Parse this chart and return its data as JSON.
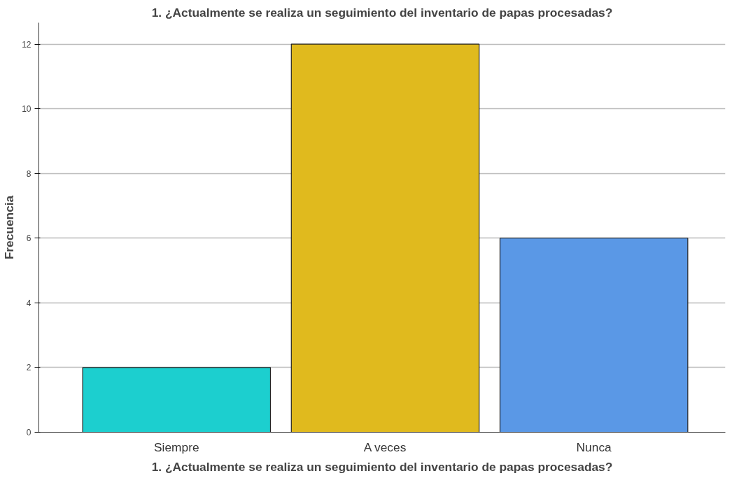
{
  "chart_data": {
    "type": "bar",
    "title": "1. ¿Actualmente se realiza un seguimiento del inventario de papas procesadas?",
    "xlabel": "1. ¿Actualmente se realiza un seguimiento del inventario de papas procesadas?",
    "ylabel": "Frecuencia",
    "categories": [
      "Siempre",
      "A veces",
      "Nunca"
    ],
    "values": [
      2,
      12,
      6
    ],
    "colors": [
      "#1ccfcf",
      "#e0ba1e",
      "#5a98e6"
    ],
    "ylim": [
      0,
      12.66
    ],
    "yticks": [
      0,
      2,
      4,
      6,
      8,
      10,
      12
    ],
    "grid": "y"
  }
}
